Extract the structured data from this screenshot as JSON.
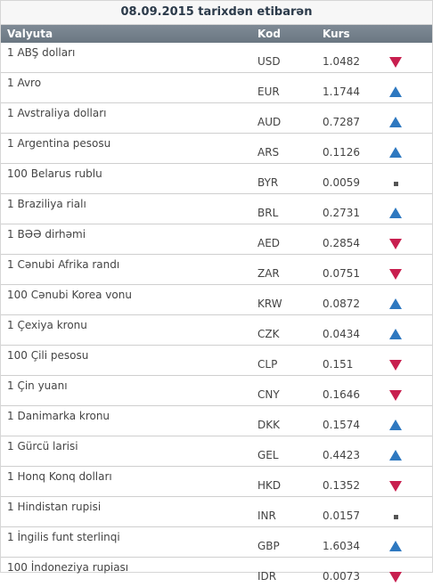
{
  "title": "08.09.2015 tarixdən etibarən",
  "headers": {
    "currency": "Valyuta",
    "code": "Kod",
    "rate": "Kurs"
  },
  "colors": {
    "up": "#2e78c0",
    "down": "#c81f4f",
    "header_bg": "#6b7782"
  },
  "rows": [
    {
      "name": "1 ABŞ dolları",
      "code": "USD",
      "rate": "1.0482",
      "trend": "down",
      "trend_icon": "down-triangle-icon"
    },
    {
      "name": "1 Avro",
      "code": "EUR",
      "rate": "1.1744",
      "trend": "up",
      "trend_icon": "up-triangle-icon"
    },
    {
      "name": "1 Avstraliya dolları",
      "code": "AUD",
      "rate": "0.7287",
      "trend": "up",
      "trend_icon": "up-triangle-icon"
    },
    {
      "name": "1 Argentina pesosu",
      "code": "ARS",
      "rate": "0.1126",
      "trend": "up",
      "trend_icon": "up-triangle-icon"
    },
    {
      "name": "100 Belarus rublu",
      "code": "BYR",
      "rate": "0.0059",
      "trend": "flat",
      "trend_icon": "square-dot-icon"
    },
    {
      "name": "1 Braziliya rialı",
      "code": "BRL",
      "rate": "0.2731",
      "trend": "up",
      "trend_icon": "up-triangle-icon"
    },
    {
      "name": "1 BƏƏ dirhəmi",
      "code": "AED",
      "rate": "0.2854",
      "trend": "down",
      "trend_icon": "down-triangle-icon"
    },
    {
      "name": "1 Cənubi Afrika randı",
      "code": "ZAR",
      "rate": "0.0751",
      "trend": "down",
      "trend_icon": "down-triangle-icon"
    },
    {
      "name": "100 Cənubi Korea vonu",
      "code": "KRW",
      "rate": "0.0872",
      "trend": "up",
      "trend_icon": "up-triangle-icon"
    },
    {
      "name": "1 Çexiya kronu",
      "code": "CZK",
      "rate": "0.0434",
      "trend": "up",
      "trend_icon": "up-triangle-icon"
    },
    {
      "name": "100 Çili pesosu",
      "code": "CLP",
      "rate": "0.151",
      "trend": "down",
      "trend_icon": "down-triangle-icon"
    },
    {
      "name": "1 Çin yuanı",
      "code": "CNY",
      "rate": "0.1646",
      "trend": "down",
      "trend_icon": "down-triangle-icon"
    },
    {
      "name": "1 Danimarka kronu",
      "code": "DKK",
      "rate": "0.1574",
      "trend": "up",
      "trend_icon": "up-triangle-icon"
    },
    {
      "name": "1 Gürcü larisi",
      "code": "GEL",
      "rate": "0.4423",
      "trend": "up",
      "trend_icon": "up-triangle-icon"
    },
    {
      "name": "1 Honq Konq dolları",
      "code": "HKD",
      "rate": "0.1352",
      "trend": "down",
      "trend_icon": "down-triangle-icon"
    },
    {
      "name": "1 Hindistan rupisi",
      "code": "INR",
      "rate": "0.0157",
      "trend": "flat",
      "trend_icon": "square-dot-icon"
    },
    {
      "name": "1 İngilis funt sterlinqi",
      "code": "GBP",
      "rate": "1.6034",
      "trend": "up",
      "trend_icon": "up-triangle-icon"
    },
    {
      "name": "100 İndoneziya rupiası",
      "code": "IDR",
      "rate": "0.0073",
      "trend": "down",
      "trend_icon": "down-triangle-icon"
    }
  ]
}
